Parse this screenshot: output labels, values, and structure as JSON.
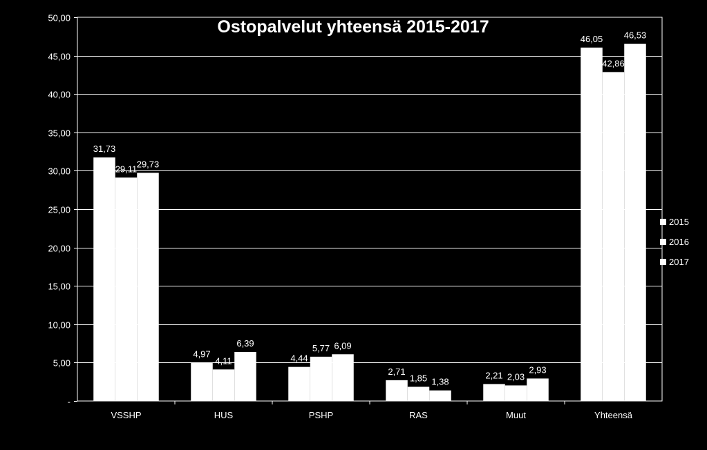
{
  "chart_data": {
    "type": "bar",
    "title": "Ostopalvelut yhteensä 2015-2017",
    "categories": [
      "VSSHP",
      "HUS",
      "PSHP",
      "RAS",
      "Muut",
      "Yhteensä"
    ],
    "series": [
      {
        "name": "2015",
        "values": [
          31.73,
          4.97,
          4.44,
          2.71,
          2.21,
          46.05
        ],
        "labels": [
          "31,73",
          "4,97",
          "4,44",
          "2,71",
          "2,21",
          "46,05"
        ]
      },
      {
        "name": "2016",
        "values": [
          29.11,
          4.11,
          5.77,
          1.85,
          2.03,
          42.86
        ],
        "labels": [
          "29,11",
          "4,11",
          "5,77",
          "1,85",
          "2,03",
          "42,86"
        ]
      },
      {
        "name": "2017",
        "values": [
          29.73,
          6.39,
          6.09,
          1.38,
          2.93,
          46.53
        ],
        "labels": [
          "29,73",
          "6,39",
          "6,09",
          "1,38",
          "2,93",
          "46,53"
        ]
      }
    ],
    "ylim": [
      0,
      50
    ],
    "yticks": [
      0,
      5,
      10,
      15,
      20,
      25,
      30,
      35,
      40,
      45,
      50
    ],
    "ytick_labels": [
      "-",
      "5,00",
      "10,00",
      "15,00",
      "20,00",
      "25,00",
      "30,00",
      "35,00",
      "40,00",
      "45,00",
      "50,00"
    ],
    "grid": true,
    "legend": "right",
    "colors": {
      "background": "#000000",
      "bar": "#ffffff",
      "text": "#ffffff",
      "grid": "#ffffff"
    }
  }
}
